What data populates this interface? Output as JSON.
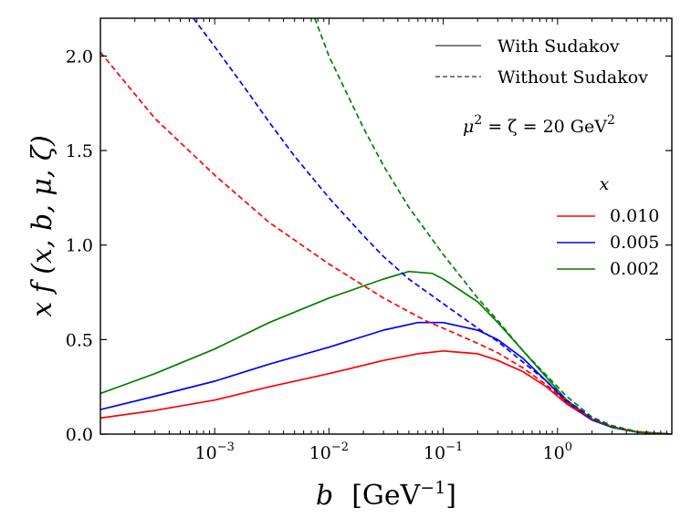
{
  "chart_data": {
    "type": "line",
    "x_scale": "log",
    "xlim": [
      0.0001,
      10
    ],
    "ylim": [
      0.0,
      2.2
    ],
    "y_ticks": [
      0.0,
      0.5,
      1.0,
      1.5,
      2.0
    ],
    "y_tick_labels": [
      "0.0",
      "0.5",
      "1.0",
      "1.5",
      "2.0"
    ],
    "x_ticks": [
      0.001,
      0.01,
      0.1,
      1
    ],
    "x_tick_labels": [
      {
        "base": "10",
        "exp": "−3"
      },
      {
        "base": "10",
        "exp": "−2"
      },
      {
        "base": "10",
        "exp": "−1"
      },
      {
        "base": "10",
        "exp": "0"
      }
    ],
    "xlabel": {
      "var": "b",
      "unit_open": "[GeV",
      "unit_exp": "−1",
      "unit_close": "]"
    },
    "ylabel": "x f (x, b, μ, ζ)",
    "annotation": {
      "lhs": "μ",
      "lhs_exp": "2",
      "mid": " = ζ = 20 GeV",
      "rhs_exp": "2"
    },
    "style_legend": {
      "placement": "top-right",
      "entries": [
        {
          "label": "With Sudakov",
          "dash": "solid"
        },
        {
          "label": "Without Sudakov",
          "dash": "dashed"
        }
      ]
    },
    "series_legend": {
      "placement": "center-right",
      "title": "x",
      "entries": [
        {
          "label": "0.010",
          "color": "#ff0000"
        },
        {
          "label": "0.005",
          "color": "#0000ff"
        },
        {
          "label": "0.002",
          "color": "#008000"
        }
      ]
    },
    "series": [
      {
        "x_value": "0.010",
        "color": "#ff0000",
        "style": "solid",
        "x": [
          0.0001,
          0.0003,
          0.001,
          0.003,
          0.01,
          0.03,
          0.06,
          0.1,
          0.2,
          0.3,
          0.5,
          0.8,
          1.2,
          2,
          3,
          5,
          10
        ],
        "y": [
          0.085,
          0.125,
          0.18,
          0.25,
          0.32,
          0.39,
          0.425,
          0.44,
          0.425,
          0.39,
          0.33,
          0.25,
          0.16,
          0.075,
          0.035,
          0.01,
          0.0
        ]
      },
      {
        "x_value": "0.005",
        "color": "#0000ff",
        "style": "solid",
        "x": [
          0.0001,
          0.0003,
          0.001,
          0.003,
          0.01,
          0.03,
          0.06,
          0.1,
          0.2,
          0.3,
          0.5,
          0.8,
          1.2,
          2,
          3,
          5,
          10
        ],
        "y": [
          0.13,
          0.2,
          0.28,
          0.37,
          0.46,
          0.55,
          0.59,
          0.59,
          0.55,
          0.5,
          0.4,
          0.28,
          0.17,
          0.075,
          0.035,
          0.01,
          0.0
        ]
      },
      {
        "x_value": "0.002",
        "color": "#008000",
        "style": "solid",
        "x": [
          0.0001,
          0.0003,
          0.001,
          0.003,
          0.01,
          0.03,
          0.05,
          0.08,
          0.1,
          0.2,
          0.3,
          0.5,
          0.8,
          1.2,
          2,
          3,
          5,
          10
        ],
        "y": [
          0.215,
          0.32,
          0.45,
          0.59,
          0.72,
          0.82,
          0.86,
          0.85,
          0.82,
          0.7,
          0.59,
          0.44,
          0.3,
          0.18,
          0.08,
          0.035,
          0.01,
          0.0
        ]
      },
      {
        "x_value": "0.010",
        "color": "#ff0000",
        "style": "dashed",
        "x": [
          0.0001,
          0.0003,
          0.001,
          0.003,
          0.01,
          0.03,
          0.07,
          0.1,
          0.2,
          0.3,
          0.5,
          0.8,
          1.2,
          2,
          3,
          5,
          10
        ],
        "y": [
          2.02,
          1.67,
          1.37,
          1.12,
          0.9,
          0.72,
          0.6,
          0.56,
          0.48,
          0.43,
          0.35,
          0.26,
          0.17,
          0.08,
          0.04,
          0.012,
          0.0
        ]
      },
      {
        "x_value": "0.005",
        "color": "#0000ff",
        "style": "dashed",
        "x": [
          0.00065,
          0.001,
          0.002,
          0.003,
          0.005,
          0.01,
          0.02,
          0.03,
          0.05,
          0.1,
          0.2,
          0.3,
          0.5,
          0.8,
          1.2,
          2,
          3,
          5,
          10
        ],
        "y": [
          2.2,
          2.05,
          1.8,
          1.65,
          1.47,
          1.25,
          1.05,
          0.94,
          0.82,
          0.69,
          0.56,
          0.49,
          0.38,
          0.28,
          0.18,
          0.085,
          0.04,
          0.012,
          0.0
        ]
      },
      {
        "x_value": "0.002",
        "color": "#008000",
        "style": "dashed",
        "x": [
          0.0075,
          0.01,
          0.02,
          0.03,
          0.05,
          0.1,
          0.2,
          0.3,
          0.5,
          0.8,
          1.2,
          2,
          3,
          5,
          10
        ],
        "y": [
          2.2,
          2.0,
          1.62,
          1.42,
          1.2,
          0.95,
          0.72,
          0.6,
          0.44,
          0.31,
          0.2,
          0.09,
          0.045,
          0.013,
          0.0
        ]
      }
    ]
  }
}
